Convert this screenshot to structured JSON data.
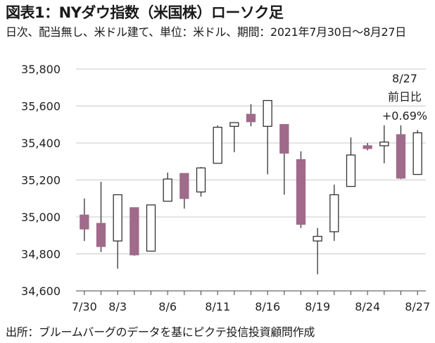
{
  "title": "図表1：NYダウ指数（米国株）ローソク足",
  "subtitle": "日次、配当無し、米ドル建て、単位：米ドル、期間：2021年7月30日～8月27日",
  "footer": "出所：ブルームバーグのデータを基にピクテ投信投資顧問作成",
  "chart_data": {
    "type": "candlestick",
    "ylim": [
      34600,
      35800
    ],
    "y_ticks": [
      "34,600",
      "34,800",
      "35,000",
      "35,200",
      "35,400",
      "35,600",
      "35,800"
    ],
    "x_tick_labels": [
      {
        "index": 0,
        "label": "7/30"
      },
      {
        "index": 2,
        "label": "8/3"
      },
      {
        "index": 5,
        "label": "8/6"
      },
      {
        "index": 8,
        "label": "8/11"
      },
      {
        "index": 11,
        "label": "8/16"
      },
      {
        "index": 14,
        "label": "8/19"
      },
      {
        "index": 17,
        "label": "8/24"
      },
      {
        "index": 20,
        "label": "8/27"
      }
    ],
    "colors": {
      "down": "#a06a8a",
      "up": "#ffffff",
      "outline": "#333333",
      "grid": "#c8c8c8"
    },
    "candles": [
      {
        "open": 35010,
        "high": 35100,
        "low": 34870,
        "close": 34935
      },
      {
        "open": 34965,
        "high": 35190,
        "low": 34810,
        "close": 34840
      },
      {
        "open": 34870,
        "high": 35120,
        "low": 34720,
        "close": 35120
      },
      {
        "open": 35050,
        "high": 35050,
        "low": 34790,
        "close": 34795
      },
      {
        "open": 34815,
        "high": 35065,
        "low": 34815,
        "close": 35065
      },
      {
        "open": 35085,
        "high": 35240,
        "low": 35085,
        "close": 35205
      },
      {
        "open": 35235,
        "high": 35235,
        "low": 35045,
        "close": 35100
      },
      {
        "open": 35135,
        "high": 35270,
        "low": 35110,
        "close": 35265
      },
      {
        "open": 35290,
        "high": 35495,
        "low": 35290,
        "close": 35485
      },
      {
        "open": 35490,
        "high": 35510,
        "low": 35350,
        "close": 35510
      },
      {
        "open": 35555,
        "high": 35610,
        "low": 35490,
        "close": 35515
      },
      {
        "open": 35490,
        "high": 35630,
        "low": 35230,
        "close": 35630
      },
      {
        "open": 35500,
        "high": 35500,
        "low": 35120,
        "close": 35345
      },
      {
        "open": 35310,
        "high": 35355,
        "low": 34940,
        "close": 34960
      },
      {
        "open": 34870,
        "high": 34940,
        "low": 34690,
        "close": 34895
      },
      {
        "open": 34920,
        "high": 35175,
        "low": 34870,
        "close": 35120
      },
      {
        "open": 35165,
        "high": 35430,
        "low": 35165,
        "close": 35335
      },
      {
        "open": 35385,
        "high": 35400,
        "low": 35360,
        "close": 35370
      },
      {
        "open": 35385,
        "high": 35495,
        "low": 35290,
        "close": 35405
      },
      {
        "open": 35445,
        "high": 35495,
        "low": 35205,
        "close": 35210
      },
      {
        "open": 35230,
        "high": 35470,
        "low": 35230,
        "close": 35455
      }
    ],
    "annotation": {
      "date": "8/27",
      "label": "前日比",
      "change": "+0.69%"
    }
  }
}
